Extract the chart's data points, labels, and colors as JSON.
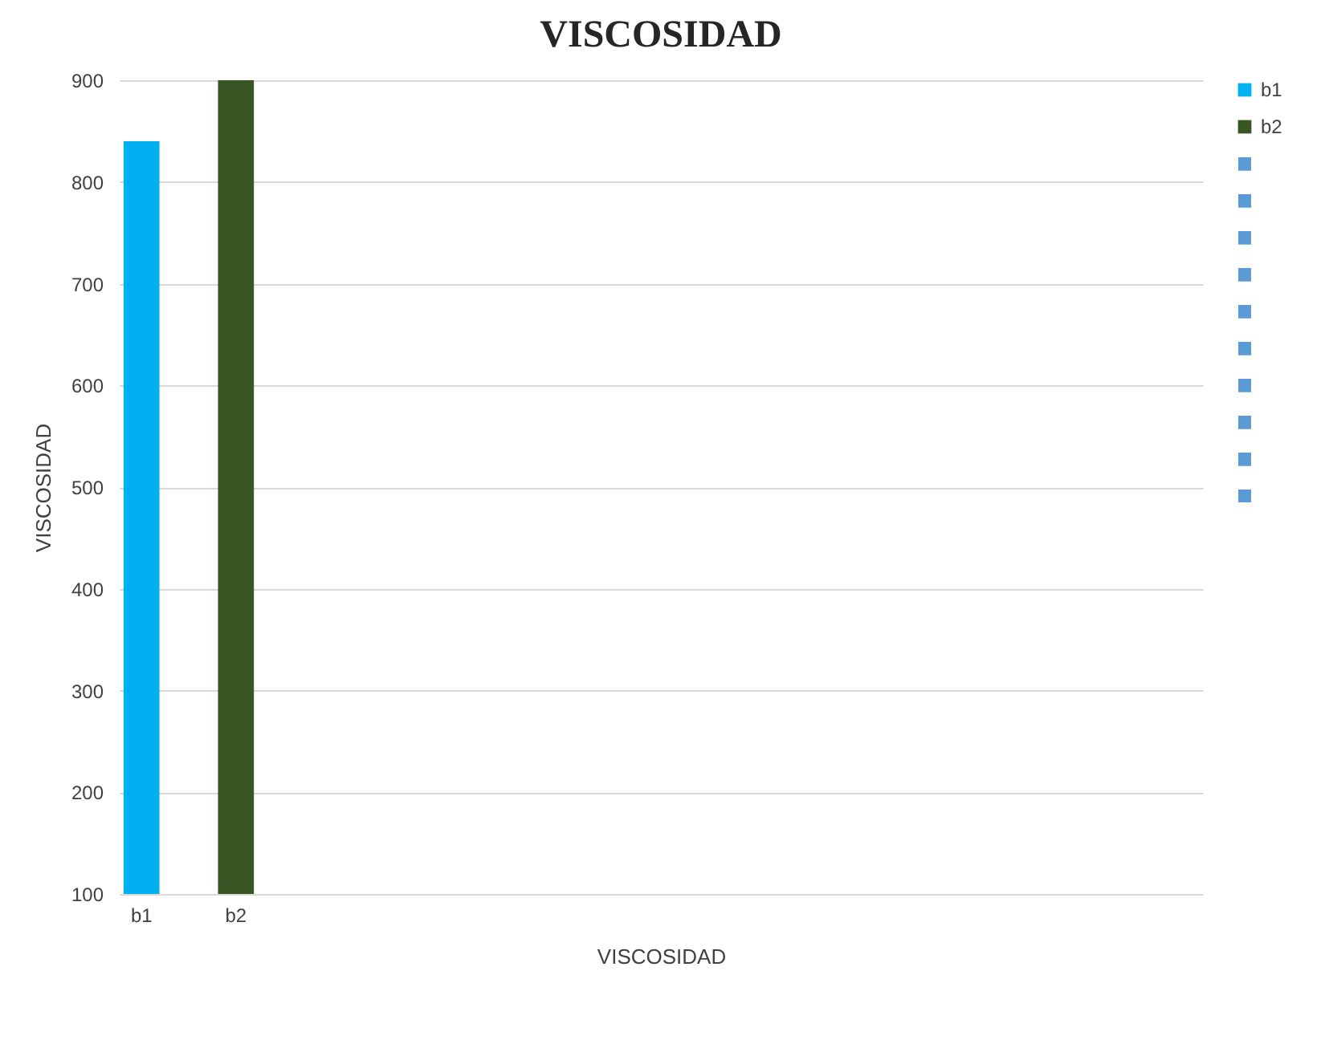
{
  "chart_data": {
    "type": "bar",
    "title": "VISCOSIDAD",
    "xlabel": "VISCOSIDAD",
    "ylabel": "VISCOSIDAD",
    "categories": [
      "b1",
      "b2",
      null,
      null,
      null,
      null,
      null,
      null,
      null,
      null,
      null,
      null
    ],
    "series": [
      {
        "name": "b1",
        "color": "#00b0f0",
        "values": [
          840,
          null,
          null,
          null,
          null,
          null,
          null,
          null,
          null,
          null,
          null,
          null
        ]
      },
      {
        "name": "b2",
        "color": "#375623",
        "values": [
          null,
          900,
          null,
          null,
          null,
          null,
          null,
          null,
          null,
          null,
          null,
          null
        ]
      }
    ],
    "ylim": [
      100,
      900
    ],
    "yticks": [
      100,
      200,
      300,
      400,
      500,
      600,
      700,
      800,
      900
    ],
    "grid": "y",
    "legend": "right"
  }
}
